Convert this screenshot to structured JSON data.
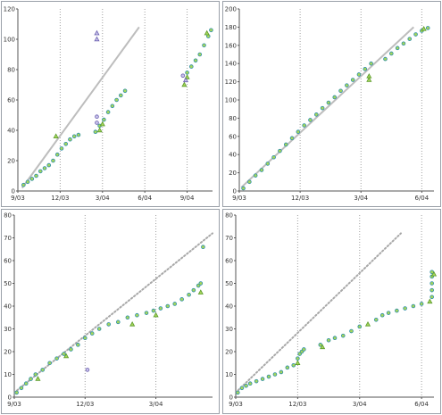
{
  "colors": {
    "reference": "#bdbdbd",
    "reference_dotted": "#a8a8a8",
    "marker_fill": "#a6d65a",
    "marker_stroke": "#2e8fa8",
    "marker_alt": "#6a5fb0",
    "vline": "#a0a0a0",
    "axis": "#555555"
  },
  "chart_data": [
    {
      "type": "scatter",
      "panel": "top-left",
      "x_unit": "months since 9/03",
      "xticks": [
        {
          "v": 0,
          "label": "9/03"
        },
        {
          "v": 3,
          "label": "12/03"
        },
        {
          "v": 6,
          "label": "3/04"
        },
        {
          "v": 9,
          "label": "6/04"
        },
        {
          "v": 12,
          "label": "9/04"
        }
      ],
      "xlim": [
        0,
        13.8
      ],
      "ylim": [
        0,
        120
      ],
      "yticks": [
        0,
        20,
        40,
        60,
        80,
        100,
        120
      ],
      "vlines": [
        3,
        6,
        9,
        12
      ],
      "reference_line": {
        "style": "solid",
        "from": [
          0.3,
          2
        ],
        "to": [
          8.6,
          108
        ]
      },
      "series": [
        {
          "marker": "circle",
          "points": [
            [
              0.4,
              4
            ],
            [
              0.7,
              6
            ],
            [
              1.0,
              8
            ],
            [
              1.3,
              10
            ],
            [
              1.6,
              13
            ],
            [
              1.9,
              15
            ],
            [
              2.2,
              17
            ],
            [
              2.5,
              20
            ],
            [
              2.8,
              24
            ],
            [
              3.1,
              28
            ],
            [
              3.4,
              31
            ],
            [
              3.7,
              34
            ],
            [
              4.0,
              36
            ],
            [
              4.3,
              37
            ],
            [
              5.5,
              39
            ],
            [
              5.8,
              43
            ],
            [
              6.1,
              47
            ],
            [
              6.4,
              52
            ],
            [
              6.7,
              56
            ],
            [
              7.0,
              60
            ],
            [
              7.3,
              63
            ],
            [
              7.6,
              66
            ],
            [
              12.0,
              78
            ],
            [
              12.3,
              82
            ],
            [
              12.6,
              86
            ],
            [
              12.9,
              90
            ],
            [
              13.2,
              96
            ],
            [
              13.5,
              102
            ],
            [
              13.7,
              106
            ]
          ]
        },
        {
          "marker": "triangle",
          "points": [
            [
              2.7,
              36
            ],
            [
              5.8,
              40
            ],
            [
              6.0,
              44
            ],
            [
              11.8,
              70
            ],
            [
              12.0,
              75
            ],
            [
              13.4,
              104
            ]
          ]
        },
        {
          "marker": "triangle-alt",
          "points": [
            [
              5.6,
              104
            ],
            [
              5.6,
              100
            ],
            [
              11.9,
              73
            ]
          ]
        },
        {
          "marker": "circle-alt",
          "points": [
            [
              5.6,
              49
            ],
            [
              5.6,
              45
            ],
            [
              11.7,
              76
            ]
          ]
        }
      ]
    },
    {
      "type": "scatter",
      "panel": "top-right",
      "x_unit": "months since 9/03",
      "xticks": [
        {
          "v": 0,
          "label": "9/03"
        },
        {
          "v": 3,
          "label": "12/03"
        },
        {
          "v": 6,
          "label": "3/04"
        },
        {
          "v": 9,
          "label": "6/04"
        }
      ],
      "xlim": [
        0,
        9.6
      ],
      "ylim": [
        0,
        200
      ],
      "yticks": [
        0,
        20,
        40,
        60,
        80,
        100,
        120,
        140,
        160,
        180,
        200
      ],
      "vlines": [
        3,
        6,
        9
      ],
      "reference_line": {
        "style": "solid",
        "from": [
          0.1,
          4
        ],
        "to": [
          8.6,
          180
        ]
      },
      "series": [
        {
          "marker": "circle",
          "points": [
            [
              0.2,
              3
            ],
            [
              0.5,
              10
            ],
            [
              0.8,
              17
            ],
            [
              1.1,
              23
            ],
            [
              1.4,
              30
            ],
            [
              1.7,
              37
            ],
            [
              2.0,
              44
            ],
            [
              2.3,
              51
            ],
            [
              2.6,
              58
            ],
            [
              2.9,
              65
            ],
            [
              3.2,
              72
            ],
            [
              3.5,
              78
            ],
            [
              3.8,
              84
            ],
            [
              4.1,
              91
            ],
            [
              4.4,
              97
            ],
            [
              4.7,
              103
            ],
            [
              5.0,
              110
            ],
            [
              5.3,
              116
            ],
            [
              5.6,
              122
            ],
            [
              5.9,
              128
            ],
            [
              6.2,
              134
            ],
            [
              6.5,
              140
            ],
            [
              7.2,
              145
            ],
            [
              7.5,
              151
            ],
            [
              7.8,
              157
            ],
            [
              8.1,
              162
            ],
            [
              8.4,
              167
            ],
            [
              8.7,
              172
            ],
            [
              9.0,
              176
            ],
            [
              9.3,
              179
            ]
          ]
        },
        {
          "marker": "triangle",
          "points": [
            [
              6.4,
              126
            ],
            [
              6.4,
              122
            ],
            [
              9.1,
              178
            ]
          ]
        }
      ]
    },
    {
      "type": "scatter",
      "panel": "bottom-left",
      "x_unit": "months since 9/03",
      "xticks": [
        {
          "v": 0,
          "label": "9/03"
        },
        {
          "v": 3,
          "label": "12/03"
        },
        {
          "v": 6,
          "label": "3/04"
        }
      ],
      "xlim": [
        0,
        8.4
      ],
      "ylim": [
        0,
        80
      ],
      "yticks": [
        0,
        10,
        20,
        30,
        40,
        50,
        60,
        70,
        80
      ],
      "vlines": [
        3,
        6
      ],
      "reference_line": {
        "style": "dotted",
        "from": [
          0.0,
          2
        ],
        "to": [
          8.4,
          72
        ]
      },
      "series": [
        {
          "marker": "circle",
          "points": [
            [
              0.1,
              2
            ],
            [
              0.3,
              4
            ],
            [
              0.5,
              6
            ],
            [
              0.7,
              8
            ],
            [
              0.9,
              10
            ],
            [
              1.2,
              12
            ],
            [
              1.5,
              15
            ],
            [
              1.8,
              17
            ],
            [
              2.1,
              19
            ],
            [
              2.4,
              21
            ],
            [
              2.7,
              23
            ],
            [
              3.0,
              26
            ],
            [
              3.3,
              28
            ],
            [
              3.6,
              30
            ],
            [
              4.0,
              32
            ],
            [
              4.4,
              33
            ],
            [
              4.8,
              35
            ],
            [
              5.2,
              36
            ],
            [
              5.6,
              37
            ],
            [
              5.9,
              38
            ],
            [
              6.2,
              39
            ],
            [
              6.5,
              40
            ],
            [
              6.8,
              41
            ],
            [
              7.1,
              43
            ],
            [
              7.4,
              45
            ],
            [
              7.6,
              47
            ],
            [
              7.8,
              49
            ],
            [
              7.9,
              50
            ],
            [
              8.0,
              66
            ]
          ]
        },
        {
          "marker": "triangle",
          "points": [
            [
              1.0,
              8
            ],
            [
              2.2,
              18
            ],
            [
              5.0,
              32
            ],
            [
              7.9,
              46
            ],
            [
              6.0,
              36
            ]
          ]
        },
        {
          "marker": "circle-alt",
          "points": [
            [
              3.1,
              12
            ]
          ]
        }
      ]
    },
    {
      "type": "scatter",
      "panel": "bottom-right",
      "x_unit": "months since 9/03",
      "xticks": [
        {
          "v": 0,
          "label": "9/03"
        },
        {
          "v": 3,
          "label": "12/03"
        },
        {
          "v": 6,
          "label": "3/04"
        },
        {
          "v": 9,
          "label": "6/04"
        }
      ],
      "xlim": [
        0,
        9.6
      ],
      "ylim": [
        0,
        80
      ],
      "yticks": [
        0,
        10,
        20,
        30,
        40,
        50,
        60,
        70,
        80
      ],
      "vlines": [
        3,
        6,
        9
      ],
      "reference_line": {
        "style": "dotted",
        "from": [
          0.0,
          2
        ],
        "to": [
          8.0,
          72
        ]
      },
      "series": [
        {
          "marker": "circle",
          "points": [
            [
              0.1,
              2
            ],
            [
              0.3,
              4
            ],
            [
              0.5,
              5
            ],
            [
              0.7,
              6
            ],
            [
              1.0,
              7
            ],
            [
              1.3,
              8
            ],
            [
              1.6,
              9
            ],
            [
              1.9,
              10
            ],
            [
              2.2,
              11
            ],
            [
              2.5,
              13
            ],
            [
              2.8,
              14
            ],
            [
              3.0,
              17
            ],
            [
              3.1,
              19
            ],
            [
              3.2,
              20
            ],
            [
              3.3,
              21
            ],
            [
              4.1,
              23
            ],
            [
              4.5,
              25
            ],
            [
              4.8,
              26
            ],
            [
              5.2,
              27
            ],
            [
              5.6,
              29
            ],
            [
              6.0,
              31
            ],
            [
              6.8,
              34
            ],
            [
              7.1,
              36
            ],
            [
              7.4,
              37
            ],
            [
              7.8,
              38
            ],
            [
              8.2,
              39
            ],
            [
              8.6,
              40
            ],
            [
              9.0,
              41
            ],
            [
              9.5,
              44
            ],
            [
              9.5,
              47
            ],
            [
              9.5,
              50
            ],
            [
              9.5,
              53
            ],
            [
              9.5,
              55
            ]
          ]
        },
        {
          "marker": "triangle",
          "points": [
            [
              3.0,
              15
            ],
            [
              4.2,
              22
            ],
            [
              6.4,
              32
            ],
            [
              9.4,
              42
            ],
            [
              9.6,
              54
            ]
          ]
        }
      ]
    }
  ]
}
